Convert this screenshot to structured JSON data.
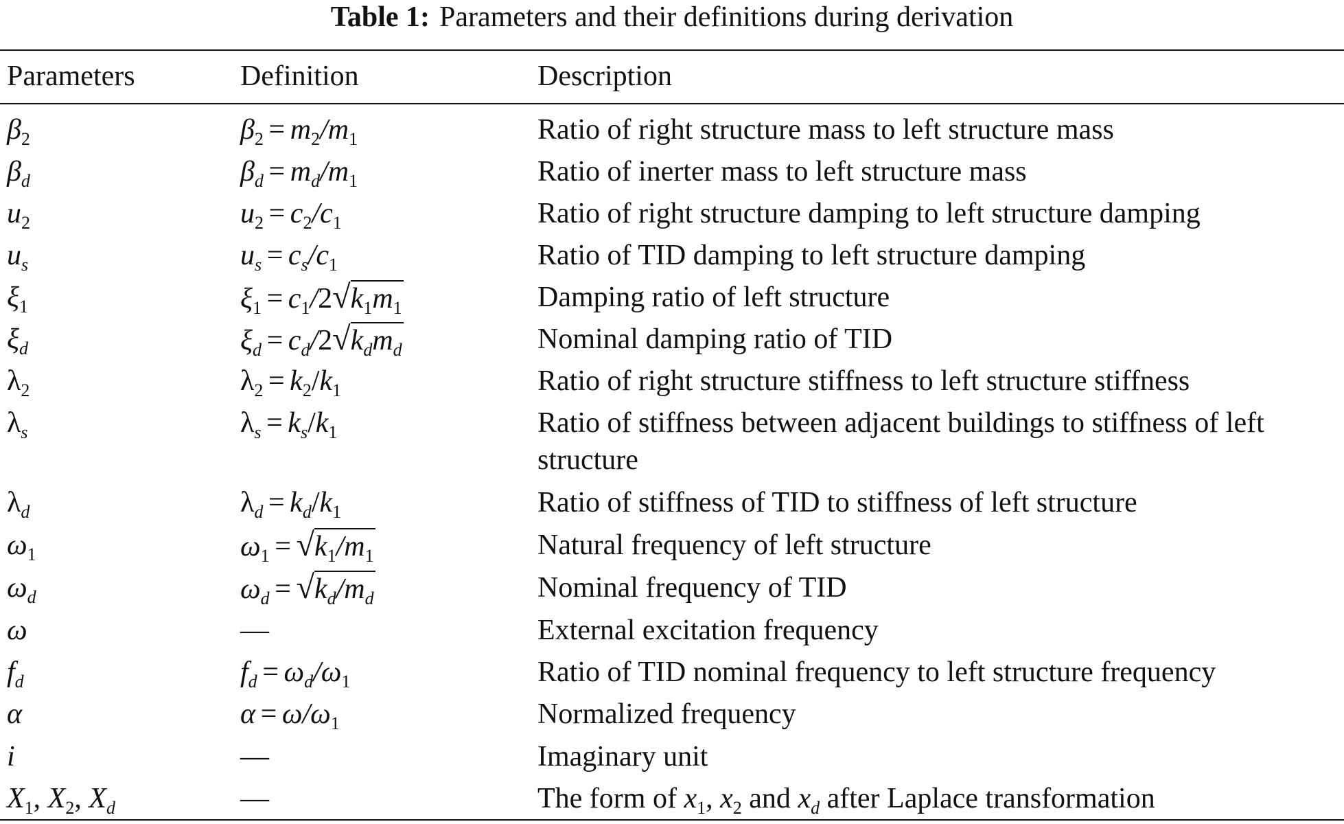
{
  "caption": {
    "label": "Table 1:",
    "title": "Parameters and their definitions during derivation"
  },
  "table": {
    "headers": [
      "Parameters",
      "Definition",
      "Description"
    ],
    "rows": [
      {
        "parameter": "β₂",
        "definition": "β₂ = m₂/m₁",
        "description": "Ratio of right structure mass to left structure mass"
      },
      {
        "parameter": "β_d",
        "definition": "β_d = m_d/m₁",
        "description": "Ratio of inerter mass to left structure mass"
      },
      {
        "parameter": "u₂",
        "definition": "u₂ = c₂/c₁",
        "description": "Ratio of right structure damping to left structure damping"
      },
      {
        "parameter": "u_s",
        "definition": "u_s = c_s/c₁",
        "description": "Ratio of TID damping to left structure damping"
      },
      {
        "parameter": "ξ₁",
        "definition": "ξ₁ = c₁/2√(k₁m₁)",
        "description": "Damping ratio of left structure"
      },
      {
        "parameter": "ξ_d",
        "definition": "ξ_d = c_d/2√(k_d m_d)",
        "description": "Nominal damping ratio of TID"
      },
      {
        "parameter": "λ₂",
        "definition": "λ₂ = k₂/k₁",
        "description": "Ratio of right structure stiffness to left structure stiffness"
      },
      {
        "parameter": "λ_s",
        "definition": "λ_s = k_s/k₁",
        "description": "Ratio of stiffness between adjacent buildings to stiffness of left structure"
      },
      {
        "parameter": "λ_d",
        "definition": "λ_d = k_d/k₁",
        "description": "Ratio of stiffness of TID to stiffness of left structure"
      },
      {
        "parameter": "ω₁",
        "definition": "ω₁ = √(k₁/m₁)",
        "description": "Natural frequency of left structure"
      },
      {
        "parameter": "ω_d",
        "definition": "ω_d = √(k_d/m_d)",
        "description": "Nominal frequency of TID"
      },
      {
        "parameter": "ω",
        "definition": "—",
        "description": "External excitation frequency"
      },
      {
        "parameter": "f_d",
        "definition": "f_d = ω_d/ω₁",
        "description": "Ratio of TID nominal frequency to left structure frequency"
      },
      {
        "parameter": "α",
        "definition": "α = ω/ω₁",
        "description": "Normalized frequency"
      },
      {
        "parameter": "i",
        "definition": "—",
        "description": "Imaginary unit"
      },
      {
        "parameter": "X₁, X₂, X_d",
        "definition": "—",
        "description": "The form of x₁, x₂ and x_d after Laplace transformation"
      }
    ]
  }
}
